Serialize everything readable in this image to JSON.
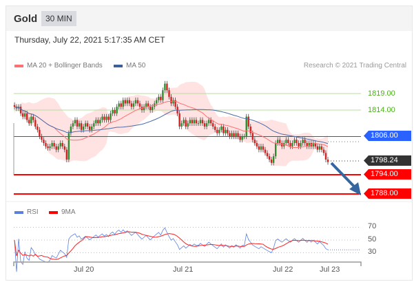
{
  "header": {
    "title": "Gold",
    "timeframe": "30 MIN"
  },
  "timestamp": "Thursday, July 22, 2021 5:17:35 AM CET",
  "legend": {
    "ma20": "MA 20 + Bollinger Bands",
    "ma50": "MA 50",
    "copyright": "Research © 2021 Trading Central"
  },
  "rsi_legend": {
    "rsi": "RSI",
    "ma": "9MA"
  },
  "colors": {
    "up": "#2e8b2e",
    "down": "#d32020",
    "ma20": "#ff7070",
    "ma50": "#4a6aa8",
    "band": "#ffe3e3",
    "resistance": "#4caf1a",
    "support": "#ff0000",
    "pivot": "#2962ff",
    "last": "#333333",
    "arrow": "#3566a0",
    "rsi": "#5a7fe0",
    "rsi_ma": "#ff2020"
  },
  "levels": {
    "r2": "1819.00",
    "r1": "1814.00",
    "pivot": "1806.00",
    "last": "1798.24",
    "s1": "1794.00",
    "s2": "1788.00"
  },
  "chart_data": {
    "type": "candlestick",
    "price_range": [
      1786,
      1826
    ],
    "closes": [
      1815,
      1814.5,
      1815,
      1813,
      1812,
      1813,
      1811,
      1810,
      1812,
      1811,
      1809,
      1808,
      1806,
      1805,
      1804,
      1803,
      1802.5,
      1803,
      1804,
      1803,
      1802,
      1803,
      1804,
      1803,
      1802,
      1799,
      1807,
      1809,
      1810,
      1811,
      1809,
      1810,
      1808,
      1809,
      1810,
      1809,
      1808,
      1809,
      1810,
      1811,
      1810,
      1811,
      1812,
      1811,
      1812,
      1811,
      1813,
      1814,
      1813,
      1815,
      1816,
      1815,
      1817,
      1816,
      1817,
      1816,
      1815,
      1816,
      1817,
      1816,
      1815,
      1814,
      1815,
      1816,
      1815,
      1814,
      1815,
      1816,
      1817,
      1818,
      1817,
      1820,
      1822,
      1820,
      1818,
      1816,
      1817,
      1815,
      1813,
      1809,
      1810,
      1811,
      1809,
      1810,
      1811,
      1810,
      1811,
      1810,
      1810,
      1811,
      1810,
      1809,
      1810,
      1811,
      1810,
      1809,
      1808,
      1807,
      1808,
      1809,
      1807,
      1808,
      1807,
      1806,
      1807,
      1806,
      1807,
      1806,
      1805,
      1806,
      1806,
      1812,
      1809,
      1807,
      1805,
      1804,
      1803,
      1802,
      1803,
      1802,
      1801,
      1800,
      1799,
      1798,
      1800,
      1804,
      1805,
      1804,
      1803,
      1804,
      1805,
      1804,
      1803,
      1804,
      1805,
      1804,
      1803,
      1804,
      1805,
      1804,
      1803,
      1804,
      1803,
      1804,
      1803,
      1802,
      1803,
      1802,
      1801,
      1799,
      1798.24
    ],
    "x_ticks": [
      "Jul 20",
      "Jul 21",
      "Jul 22",
      "Jul 23"
    ],
    "rsi_ticks": [
      "70",
      "50",
      "30"
    ],
    "rsi_range": [
      20,
      80
    ]
  }
}
